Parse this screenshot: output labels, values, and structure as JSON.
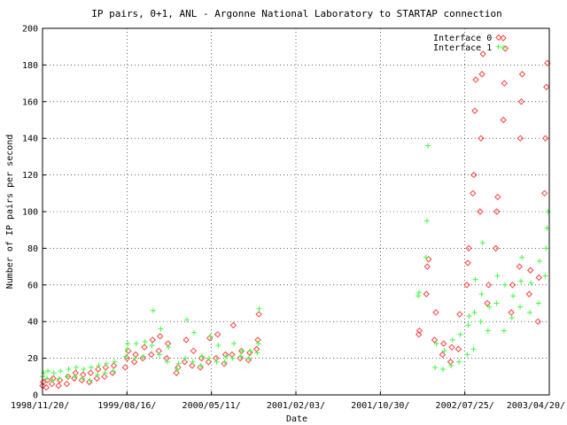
{
  "chart_data": {
    "type": "scatter",
    "title": "IP pairs, 0+1, ANL - Argonne National Laboratory to STARTAP connection",
    "xlabel": "Date",
    "ylabel": "Number of IP pairs per second",
    "ylim": [
      0,
      200
    ],
    "yticks": [
      "0",
      "20",
      "40",
      "60",
      "80",
      "100",
      "120",
      "140",
      "160",
      "180",
      "200"
    ],
    "xlim": [
      "1998-11-20",
      "2003-04-20"
    ],
    "xticks": [
      "1998/11/20/",
      "1999/08/16/",
      "2000/05/11/",
      "2001/02/03/",
      "2001/10/30/",
      "2002/07/25/",
      "2003/04/20/"
    ],
    "legend_position": "top-right",
    "series": [
      {
        "name": "Interface 0",
        "marker": "diamond",
        "color": "#ff4040",
        "points": [
          [
            "1998-11-20",
            5
          ],
          [
            "1998-11-22",
            7
          ],
          [
            "1998-12-02",
            4
          ],
          [
            "1998-12-05",
            8
          ],
          [
            "1998-12-20",
            6
          ],
          [
            "1998-12-24",
            9
          ],
          [
            "1999-01-10",
            5
          ],
          [
            "1999-01-14",
            8
          ],
          [
            "1999-02-05",
            6
          ],
          [
            "1999-02-09",
            10
          ],
          [
            "1999-03-01",
            9
          ],
          [
            "1999-03-05",
            12
          ],
          [
            "1999-03-25",
            8
          ],
          [
            "1999-03-29",
            11
          ],
          [
            "1999-04-18",
            7
          ],
          [
            "1999-04-22",
            12
          ],
          [
            "1999-05-12",
            9
          ],
          [
            "1999-05-16",
            14
          ],
          [
            "1999-06-05",
            10
          ],
          [
            "1999-06-09",
            15
          ],
          [
            "1999-07-01",
            12
          ],
          [
            "1999-07-05",
            16
          ],
          [
            "1999-08-10",
            15
          ],
          [
            "1999-08-16",
            20
          ],
          [
            "1999-08-20",
            24
          ],
          [
            "1999-09-08",
            18
          ],
          [
            "1999-09-12",
            22
          ],
          [
            "1999-10-05",
            20
          ],
          [
            "1999-10-10",
            26
          ],
          [
            "1999-11-01",
            22
          ],
          [
            "1999-11-05",
            30
          ],
          [
            "1999-11-25",
            24
          ],
          [
            "1999-11-29",
            32
          ],
          [
            "1999-12-20",
            20
          ],
          [
            "1999-12-24",
            28
          ],
          [
            "2000-01-20",
            12
          ],
          [
            "2000-01-25",
            15
          ],
          [
            "2000-02-15",
            18
          ],
          [
            "2000-02-20",
            30
          ],
          [
            "2000-03-10",
            16
          ],
          [
            "2000-03-14",
            24
          ],
          [
            "2000-04-05",
            15
          ],
          [
            "2000-04-09",
            20
          ],
          [
            "2000-05-01",
            18
          ],
          [
            "2000-05-05",
            31
          ],
          [
            "2000-05-25",
            20
          ],
          [
            "2000-05-30",
            33
          ],
          [
            "2000-06-20",
            17
          ],
          [
            "2000-06-24",
            22
          ],
          [
            "2000-07-15",
            22
          ],
          [
            "2000-07-19",
            38
          ],
          [
            "2000-08-10",
            20
          ],
          [
            "2000-08-14",
            24
          ],
          [
            "2000-09-05",
            19
          ],
          [
            "2000-09-09",
            23
          ],
          [
            "2000-10-01",
            25
          ],
          [
            "2000-10-05",
            30
          ],
          [
            "2000-10-08",
            44
          ],
          [
            "2002-03-01",
            33
          ],
          [
            "2002-03-03",
            35
          ],
          [
            "2002-03-25",
            55
          ],
          [
            "2002-03-28",
            70
          ],
          [
            "2002-04-01",
            74
          ],
          [
            "2002-04-20",
            30
          ],
          [
            "2002-04-24",
            45
          ],
          [
            "2002-05-15",
            22
          ],
          [
            "2002-05-19",
            28
          ],
          [
            "2002-06-10",
            18
          ],
          [
            "2002-06-14",
            26
          ],
          [
            "2002-07-05",
            25
          ],
          [
            "2002-07-09",
            44
          ],
          [
            "2002-08-01",
            60
          ],
          [
            "2002-08-04",
            72
          ],
          [
            "2002-08-07",
            80
          ],
          [
            "2002-08-20",
            110
          ],
          [
            "2002-08-23",
            120
          ],
          [
            "2002-08-26",
            155
          ],
          [
            "2002-08-29",
            172
          ],
          [
            "2002-09-12",
            100
          ],
          [
            "2002-09-15",
            140
          ],
          [
            "2002-09-18",
            175
          ],
          [
            "2002-09-21",
            186
          ],
          [
            "2002-10-05",
            50
          ],
          [
            "2002-10-09",
            60
          ],
          [
            "2002-11-01",
            80
          ],
          [
            "2002-11-04",
            100
          ],
          [
            "2002-11-07",
            108
          ],
          [
            "2002-11-10",
            195
          ],
          [
            "2002-11-25",
            150
          ],
          [
            "2002-11-28",
            170
          ],
          [
            "2002-12-01",
            189
          ],
          [
            "2002-12-20",
            45
          ],
          [
            "2002-12-24",
            60
          ],
          [
            "2003-01-15",
            70
          ],
          [
            "2003-01-18",
            140
          ],
          [
            "2003-01-21",
            160
          ],
          [
            "2003-01-24",
            175
          ],
          [
            "2003-02-15",
            55
          ],
          [
            "2003-02-19",
            68
          ],
          [
            "2003-03-15",
            40
          ],
          [
            "2003-03-18",
            64
          ],
          [
            "2003-04-05",
            110
          ],
          [
            "2003-04-08",
            140
          ],
          [
            "2003-04-11",
            168
          ],
          [
            "2003-04-14",
            181
          ]
        ]
      },
      {
        "name": "Interface 1",
        "marker": "cross",
        "color": "#40ff40",
        "points": [
          [
            "1998-11-20",
            10
          ],
          [
            "1998-11-24",
            12
          ],
          [
            "1998-12-04",
            9
          ],
          [
            "1998-12-07",
            13
          ],
          [
            "1998-12-22",
            8
          ],
          [
            "1998-12-26",
            12
          ],
          [
            "1999-01-12",
            9
          ],
          [
            "1999-01-16",
            13
          ],
          [
            "1999-02-07",
            10
          ],
          [
            "1999-02-11",
            14
          ],
          [
            "1999-03-03",
            10
          ],
          [
            "1999-03-07",
            15
          ],
          [
            "1999-03-27",
            9
          ],
          [
            "1999-03-31",
            14
          ],
          [
            "1999-04-20",
            8
          ],
          [
            "1999-04-24",
            15
          ],
          [
            "1999-05-14",
            11
          ],
          [
            "1999-05-18",
            16
          ],
          [
            "1999-06-07",
            12
          ],
          [
            "1999-06-11",
            17
          ],
          [
            "1999-07-03",
            13
          ],
          [
            "1999-07-07",
            18
          ],
          [
            "1999-08-12",
            21
          ],
          [
            "1999-08-16",
            25
          ],
          [
            "1999-08-18",
            28
          ],
          [
            "1999-09-10",
            20
          ],
          [
            "1999-09-14",
            28
          ],
          [
            "1999-10-07",
            21
          ],
          [
            "1999-10-12",
            29
          ],
          [
            "1999-11-03",
            27
          ],
          [
            "1999-11-07",
            46
          ],
          [
            "1999-11-27",
            22
          ],
          [
            "1999-12-01",
            36
          ],
          [
            "1999-12-22",
            18
          ],
          [
            "1999-12-26",
            26
          ],
          [
            "2000-01-22",
            14
          ],
          [
            "2000-01-27",
            17
          ],
          [
            "2000-02-17",
            20
          ],
          [
            "2000-02-22",
            41
          ],
          [
            "2000-03-12",
            18
          ],
          [
            "2000-03-16",
            34
          ],
          [
            "2000-04-07",
            16
          ],
          [
            "2000-04-11",
            21
          ],
          [
            "2000-05-03",
            20
          ],
          [
            "2000-05-07",
            32
          ],
          [
            "2000-05-27",
            18
          ],
          [
            "2000-06-01",
            27
          ],
          [
            "2000-06-22",
            18
          ],
          [
            "2000-06-26",
            21
          ],
          [
            "2000-07-17",
            20
          ],
          [
            "2000-07-21",
            28
          ],
          [
            "2000-08-12",
            21
          ],
          [
            "2000-08-16",
            24
          ],
          [
            "2000-09-07",
            20
          ],
          [
            "2000-09-11",
            24
          ],
          [
            "2000-10-03",
            23
          ],
          [
            "2000-10-07",
            28
          ],
          [
            "2000-10-09",
            47
          ],
          [
            "2002-02-27",
            54
          ],
          [
            "2002-03-02",
            56
          ],
          [
            "2002-03-24",
            75
          ],
          [
            "2002-03-27",
            95
          ],
          [
            "2002-03-30",
            136
          ],
          [
            "2002-04-22",
            15
          ],
          [
            "2002-04-26",
            28
          ],
          [
            "2002-05-17",
            14
          ],
          [
            "2002-05-21",
            24
          ],
          [
            "2002-06-12",
            16
          ],
          [
            "2002-06-16",
            30
          ],
          [
            "2002-07-07",
            18
          ],
          [
            "2002-07-11",
            33
          ],
          [
            "2002-08-02",
            22
          ],
          [
            "2002-08-05",
            38
          ],
          [
            "2002-08-08",
            43
          ],
          [
            "2002-08-22",
            25
          ],
          [
            "2002-08-25",
            45
          ],
          [
            "2002-08-28",
            63
          ],
          [
            "2002-09-14",
            40
          ],
          [
            "2002-09-17",
            55
          ],
          [
            "2002-09-20",
            83
          ],
          [
            "2002-10-07",
            35
          ],
          [
            "2002-10-11",
            48
          ],
          [
            "2002-11-03",
            50
          ],
          [
            "2002-11-06",
            65
          ],
          [
            "2002-11-09",
            190
          ],
          [
            "2002-11-27",
            35
          ],
          [
            "2002-11-30",
            60
          ],
          [
            "2002-12-22",
            42
          ],
          [
            "2002-12-26",
            54
          ],
          [
            "2003-01-17",
            48
          ],
          [
            "2003-01-20",
            62
          ],
          [
            "2003-01-23",
            75
          ],
          [
            "2003-02-17",
            45
          ],
          [
            "2003-02-21",
            61
          ],
          [
            "2003-03-17",
            50
          ],
          [
            "2003-03-20",
            73
          ],
          [
            "2003-04-07",
            65
          ],
          [
            "2003-04-10",
            80
          ],
          [
            "2003-04-13",
            91
          ],
          [
            "2003-04-16",
            100
          ]
        ]
      }
    ]
  }
}
